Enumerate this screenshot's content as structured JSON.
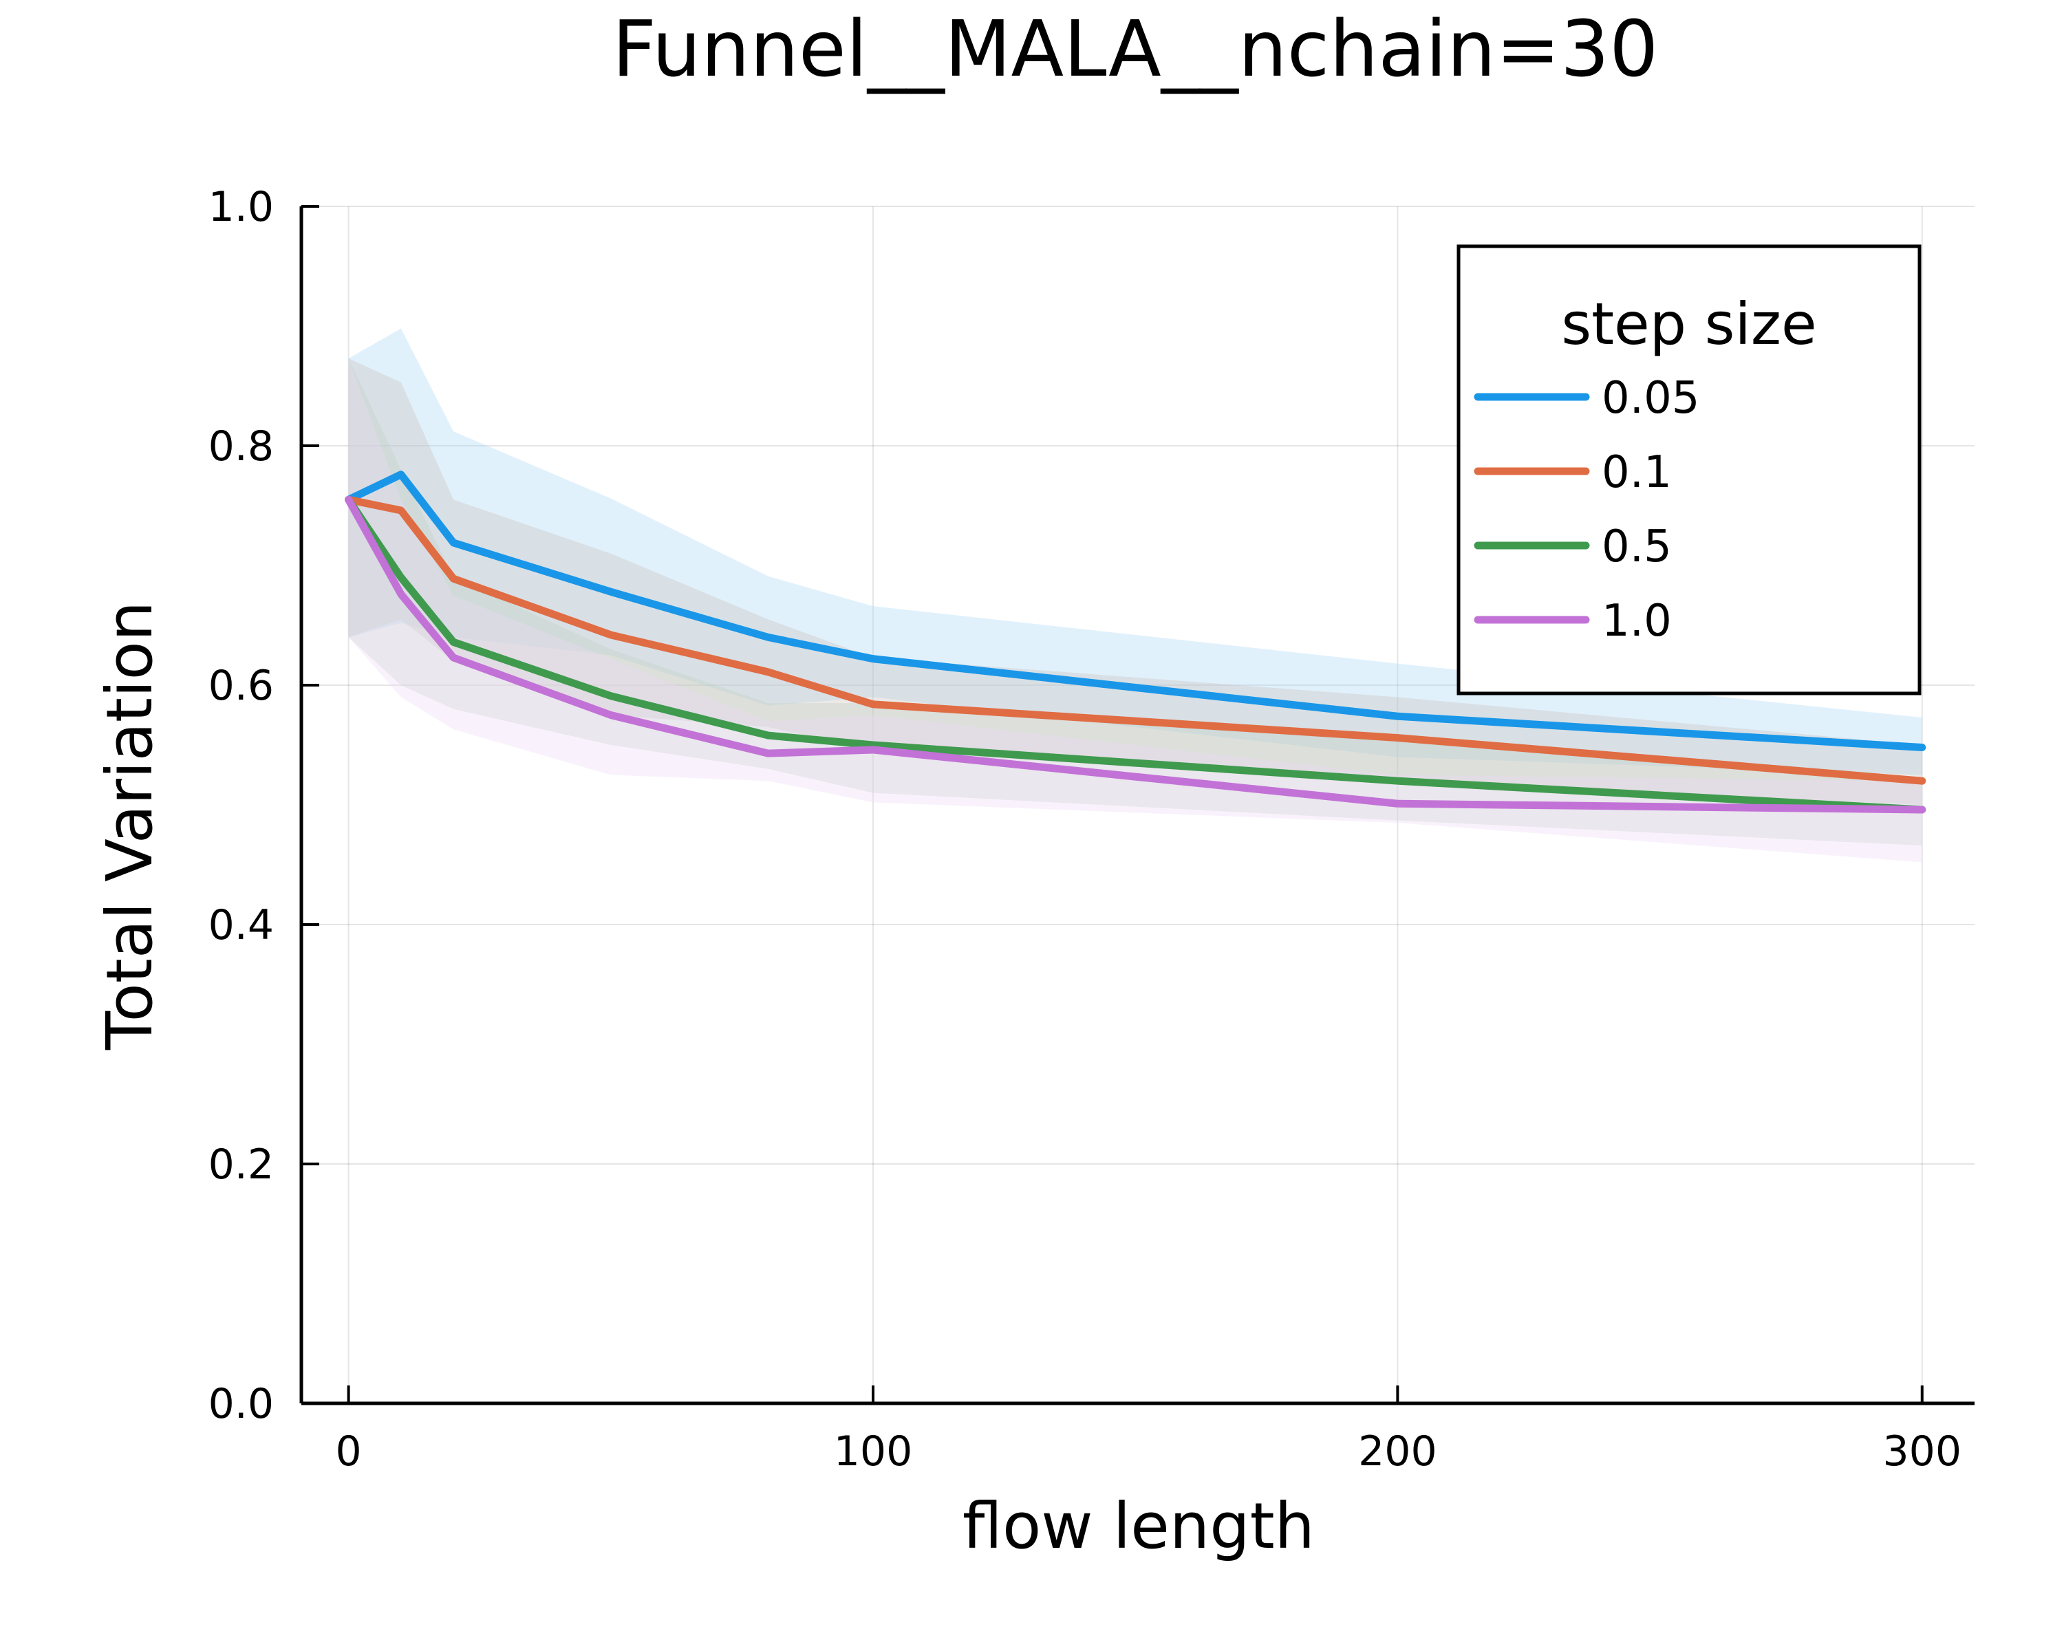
{
  "chart_data": {
    "type": "line",
    "title": "Funnel__MALA__nchain=30",
    "xlabel": "flow length",
    "ylabel": "Total Variation",
    "xlim": [
      -9,
      310
    ],
    "ylim": [
      0.0,
      1.0
    ],
    "x_ticks": [
      0,
      100,
      200,
      300
    ],
    "y_ticks": [
      0.0,
      0.2,
      0.4,
      0.6,
      0.8,
      1.0
    ],
    "x_tick_labels": [
      "0",
      "100",
      "200",
      "300"
    ],
    "y_tick_labels": [
      "0.0",
      "0.2",
      "0.4",
      "0.6",
      "0.8",
      "1.0"
    ],
    "grid": true,
    "legend": {
      "title": "step size",
      "position": "top-right"
    },
    "x": [
      0,
      10,
      20,
      50,
      80,
      100,
      200,
      300
    ],
    "series": [
      {
        "name": "0.05",
        "color": "#1a96e8",
        "band_color": "#a9d8f7",
        "values": [
          0.755,
          0.776,
          0.719,
          0.678,
          0.64,
          0.622,
          0.574,
          0.548
        ],
        "lower": [
          0.64,
          0.652,
          0.64,
          0.625,
          0.583,
          0.59,
          0.54,
          0.525
        ],
        "upper": [
          0.873,
          0.898,
          0.812,
          0.756,
          0.691,
          0.666,
          0.618,
          0.573
        ]
      },
      {
        "name": "0.1",
        "color": "#e06c43",
        "band_color": "#c9bfba",
        "values": [
          0.755,
          0.746,
          0.689,
          0.642,
          0.611,
          0.584,
          0.556,
          0.52
        ],
        "lower": [
          0.64,
          0.655,
          0.62,
          0.575,
          0.565,
          0.545,
          0.52,
          0.5
        ],
        "upper": [
          0.873,
          0.853,
          0.755,
          0.71,
          0.655,
          0.623,
          0.59,
          0.55
        ]
      },
      {
        "name": "0.5",
        "color": "#3f9a4e",
        "band_color": "#c1cfc3",
        "values": [
          0.755,
          0.69,
          0.636,
          0.591,
          0.558,
          0.55,
          0.52,
          0.496
        ],
        "lower": [
          0.64,
          0.6,
          0.58,
          0.55,
          0.53,
          0.51,
          0.487,
          0.466
        ],
        "upper": [
          0.873,
          0.78,
          0.69,
          0.63,
          0.585,
          0.585,
          0.555,
          0.52
        ]
      },
      {
        "name": "1.0",
        "color": "#c272d6",
        "band_color": "#eed9f6",
        "values": [
          0.755,
          0.676,
          0.623,
          0.575,
          0.543,
          0.546,
          0.501,
          0.496
        ],
        "lower": [
          0.64,
          0.59,
          0.563,
          0.525,
          0.52,
          0.502,
          0.485,
          0.452
        ],
        "upper": [
          0.873,
          0.755,
          0.675,
          0.622,
          0.57,
          0.575,
          0.525,
          0.52
        ]
      }
    ]
  }
}
